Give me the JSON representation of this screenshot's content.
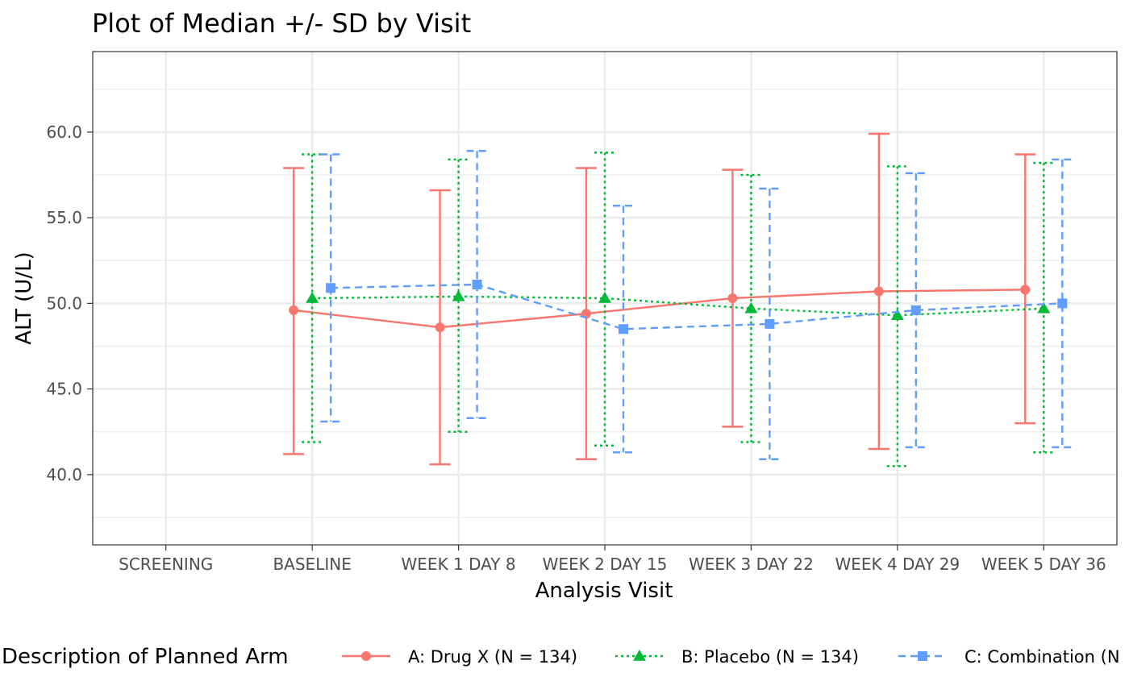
{
  "chart_data": {
    "type": "line",
    "title": "Plot of Median +/- SD by Visit",
    "xlabel": "Analysis Visit",
    "ylabel": "ALT (U/L)",
    "categories": [
      "SCREENING",
      "BASELINE",
      "WEEK 1 DAY 8",
      "WEEK 2 DAY 15",
      "WEEK 3 DAY 22",
      "WEEK 4 DAY 29",
      "WEEK 5 DAY 36"
    ],
    "ylim": [
      35.9,
      64.7
    ],
    "yticks": [
      40,
      45,
      50,
      55,
      60
    ],
    "ytick_labels": [
      "40.0",
      "45.0",
      "50.0",
      "55.0",
      "60.0"
    ],
    "grid": true,
    "legend_title": "Description of Planned Arm",
    "legend_position": "bottom",
    "series": [
      {
        "name": "A: Drug X (N = 134)",
        "color": "#F8766D",
        "marker": "circle",
        "line_style": "solid",
        "median": [
          null,
          49.6,
          48.6,
          49.4,
          50.3,
          50.7,
          50.8
        ],
        "lower": [
          null,
          41.2,
          40.6,
          40.9,
          42.8,
          41.5,
          43.0
        ],
        "upper": [
          null,
          57.9,
          56.6,
          57.9,
          57.8,
          59.9,
          58.7
        ]
      },
      {
        "name": "B: Placebo (N = 134)",
        "color": "#00BA38",
        "marker": "triangle",
        "line_style": "dotted",
        "median": [
          null,
          50.3,
          50.4,
          50.3,
          49.7,
          49.3,
          49.7
        ],
        "lower": [
          null,
          41.9,
          42.5,
          41.7,
          41.9,
          40.5,
          41.3
        ],
        "upper": [
          null,
          58.7,
          58.4,
          58.8,
          57.5,
          58.0,
          58.2
        ]
      },
      {
        "name": "C: Combination (N",
        "color": "#619CFF",
        "marker": "square",
        "line_style": "dashed",
        "median": [
          null,
          50.9,
          51.1,
          48.5,
          48.8,
          49.6,
          50.0
        ],
        "lower": [
          null,
          43.1,
          43.3,
          41.3,
          40.9,
          41.6,
          41.6
        ],
        "upper": [
          null,
          58.7,
          58.9,
          55.7,
          56.7,
          57.6,
          58.4
        ]
      }
    ]
  }
}
